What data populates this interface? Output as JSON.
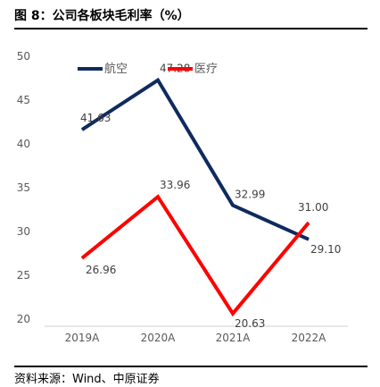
{
  "figure": {
    "title": "图 8：公司各板块毛利率（%）",
    "source": "资料来源：Wind、中原证券"
  },
  "chart_data": {
    "type": "line",
    "categories": [
      "2019A",
      "2020A",
      "2021A",
      "2022A"
    ],
    "series": [
      {
        "name": "航空",
        "values": [
          41.63,
          47.28,
          32.99,
          29.1
        ],
        "labels": [
          "41.63",
          "47.28",
          "32.99",
          "29.10"
        ],
        "color": "#0f2a60"
      },
      {
        "name": "医疗",
        "values": [
          26.96,
          33.96,
          20.63,
          31.0
        ],
        "labels": [
          "26.96",
          "33.96",
          "20.63",
          "31.00"
        ],
        "color": "#ff0000"
      }
    ],
    "ylim": [
      20,
      50
    ],
    "yticks": [
      20,
      25,
      30,
      35,
      40,
      45,
      50
    ],
    "grid": false,
    "legend": "top-left",
    "xlabel": "",
    "ylabel": ""
  }
}
